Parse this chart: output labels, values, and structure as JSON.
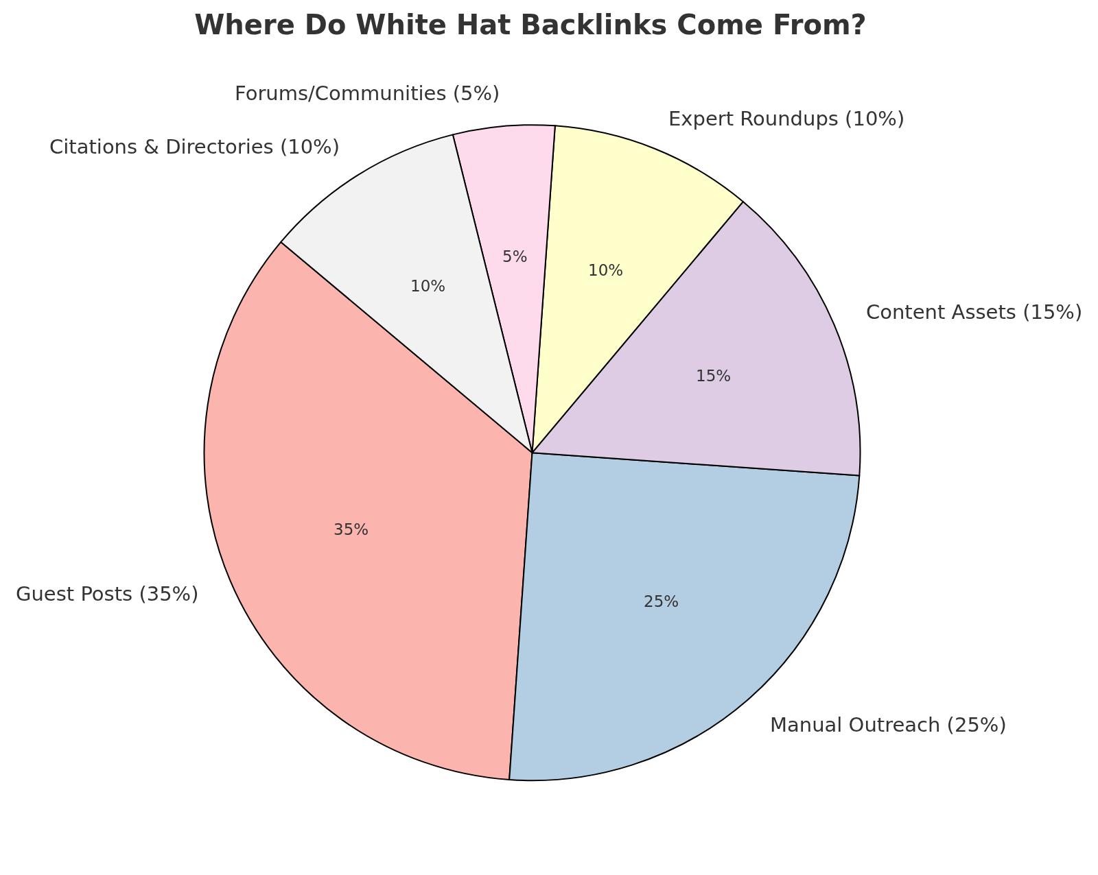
{
  "chart_data": {
    "type": "pie",
    "title": "Where Do White Hat Backlinks Come From?",
    "categories": [
      "Guest Posts (35%)",
      "Manual Outreach (25%)",
      "Content Assets (15%)",
      "Expert Roundups (10%)",
      "Forums/Communities (5%)",
      "Citations & Directories (10%)"
    ],
    "values": [
      35,
      25,
      15,
      10,
      5,
      10
    ],
    "colors": [
      "#fbb4ae",
      "#b3cde3",
      "#decbe4",
      "#ffffcc",
      "#fddaec",
      "#f2f2f2"
    ],
    "value_labels": [
      "35%",
      "25%",
      "15%",
      "10%",
      "5%",
      "10%"
    ],
    "legend": false
  }
}
